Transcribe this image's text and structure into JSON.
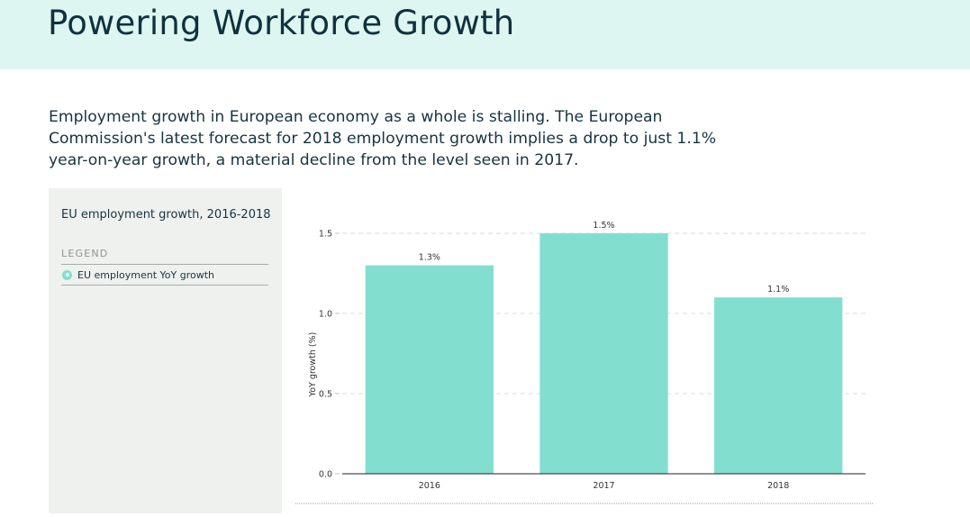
{
  "header": {
    "title": "Powering Workforce Growth"
  },
  "intro": {
    "text": "Employment growth in European economy as a whole is stalling. The European Commission's latest forecast for 2018 employment growth implies a drop to just 1.1% year-on-year growth, a material decline from the level seen in 2017."
  },
  "panel": {
    "legend_heading": "LEGEND",
    "legend_items": [
      {
        "label": "EU employment YoY growth",
        "color": "#82dfd0"
      }
    ]
  },
  "colors": {
    "bar": "#82dfd0",
    "banner": "#def6f1",
    "panel": "#eff1ef"
  },
  "chart_data": {
    "type": "bar",
    "title": "EU employment growth, 2016-2018",
    "categories": [
      "2016",
      "2017",
      "2018"
    ],
    "series": [
      {
        "name": "EU employment YoY growth",
        "values": [
          1.3,
          1.5,
          1.1
        ]
      }
    ],
    "data_labels": [
      "1.3%",
      "1.5%",
      "1.1%"
    ],
    "xlabel": "",
    "ylabel": "YoY growth (%)",
    "ylim": [
      0,
      1.5
    ],
    "yticks": [
      0.0,
      0.5,
      1.0,
      1.5
    ],
    "ytick_labels": [
      "0.0",
      "0.5",
      "1.0",
      "1.5"
    ],
    "grid": true,
    "legend": "left-panel"
  }
}
